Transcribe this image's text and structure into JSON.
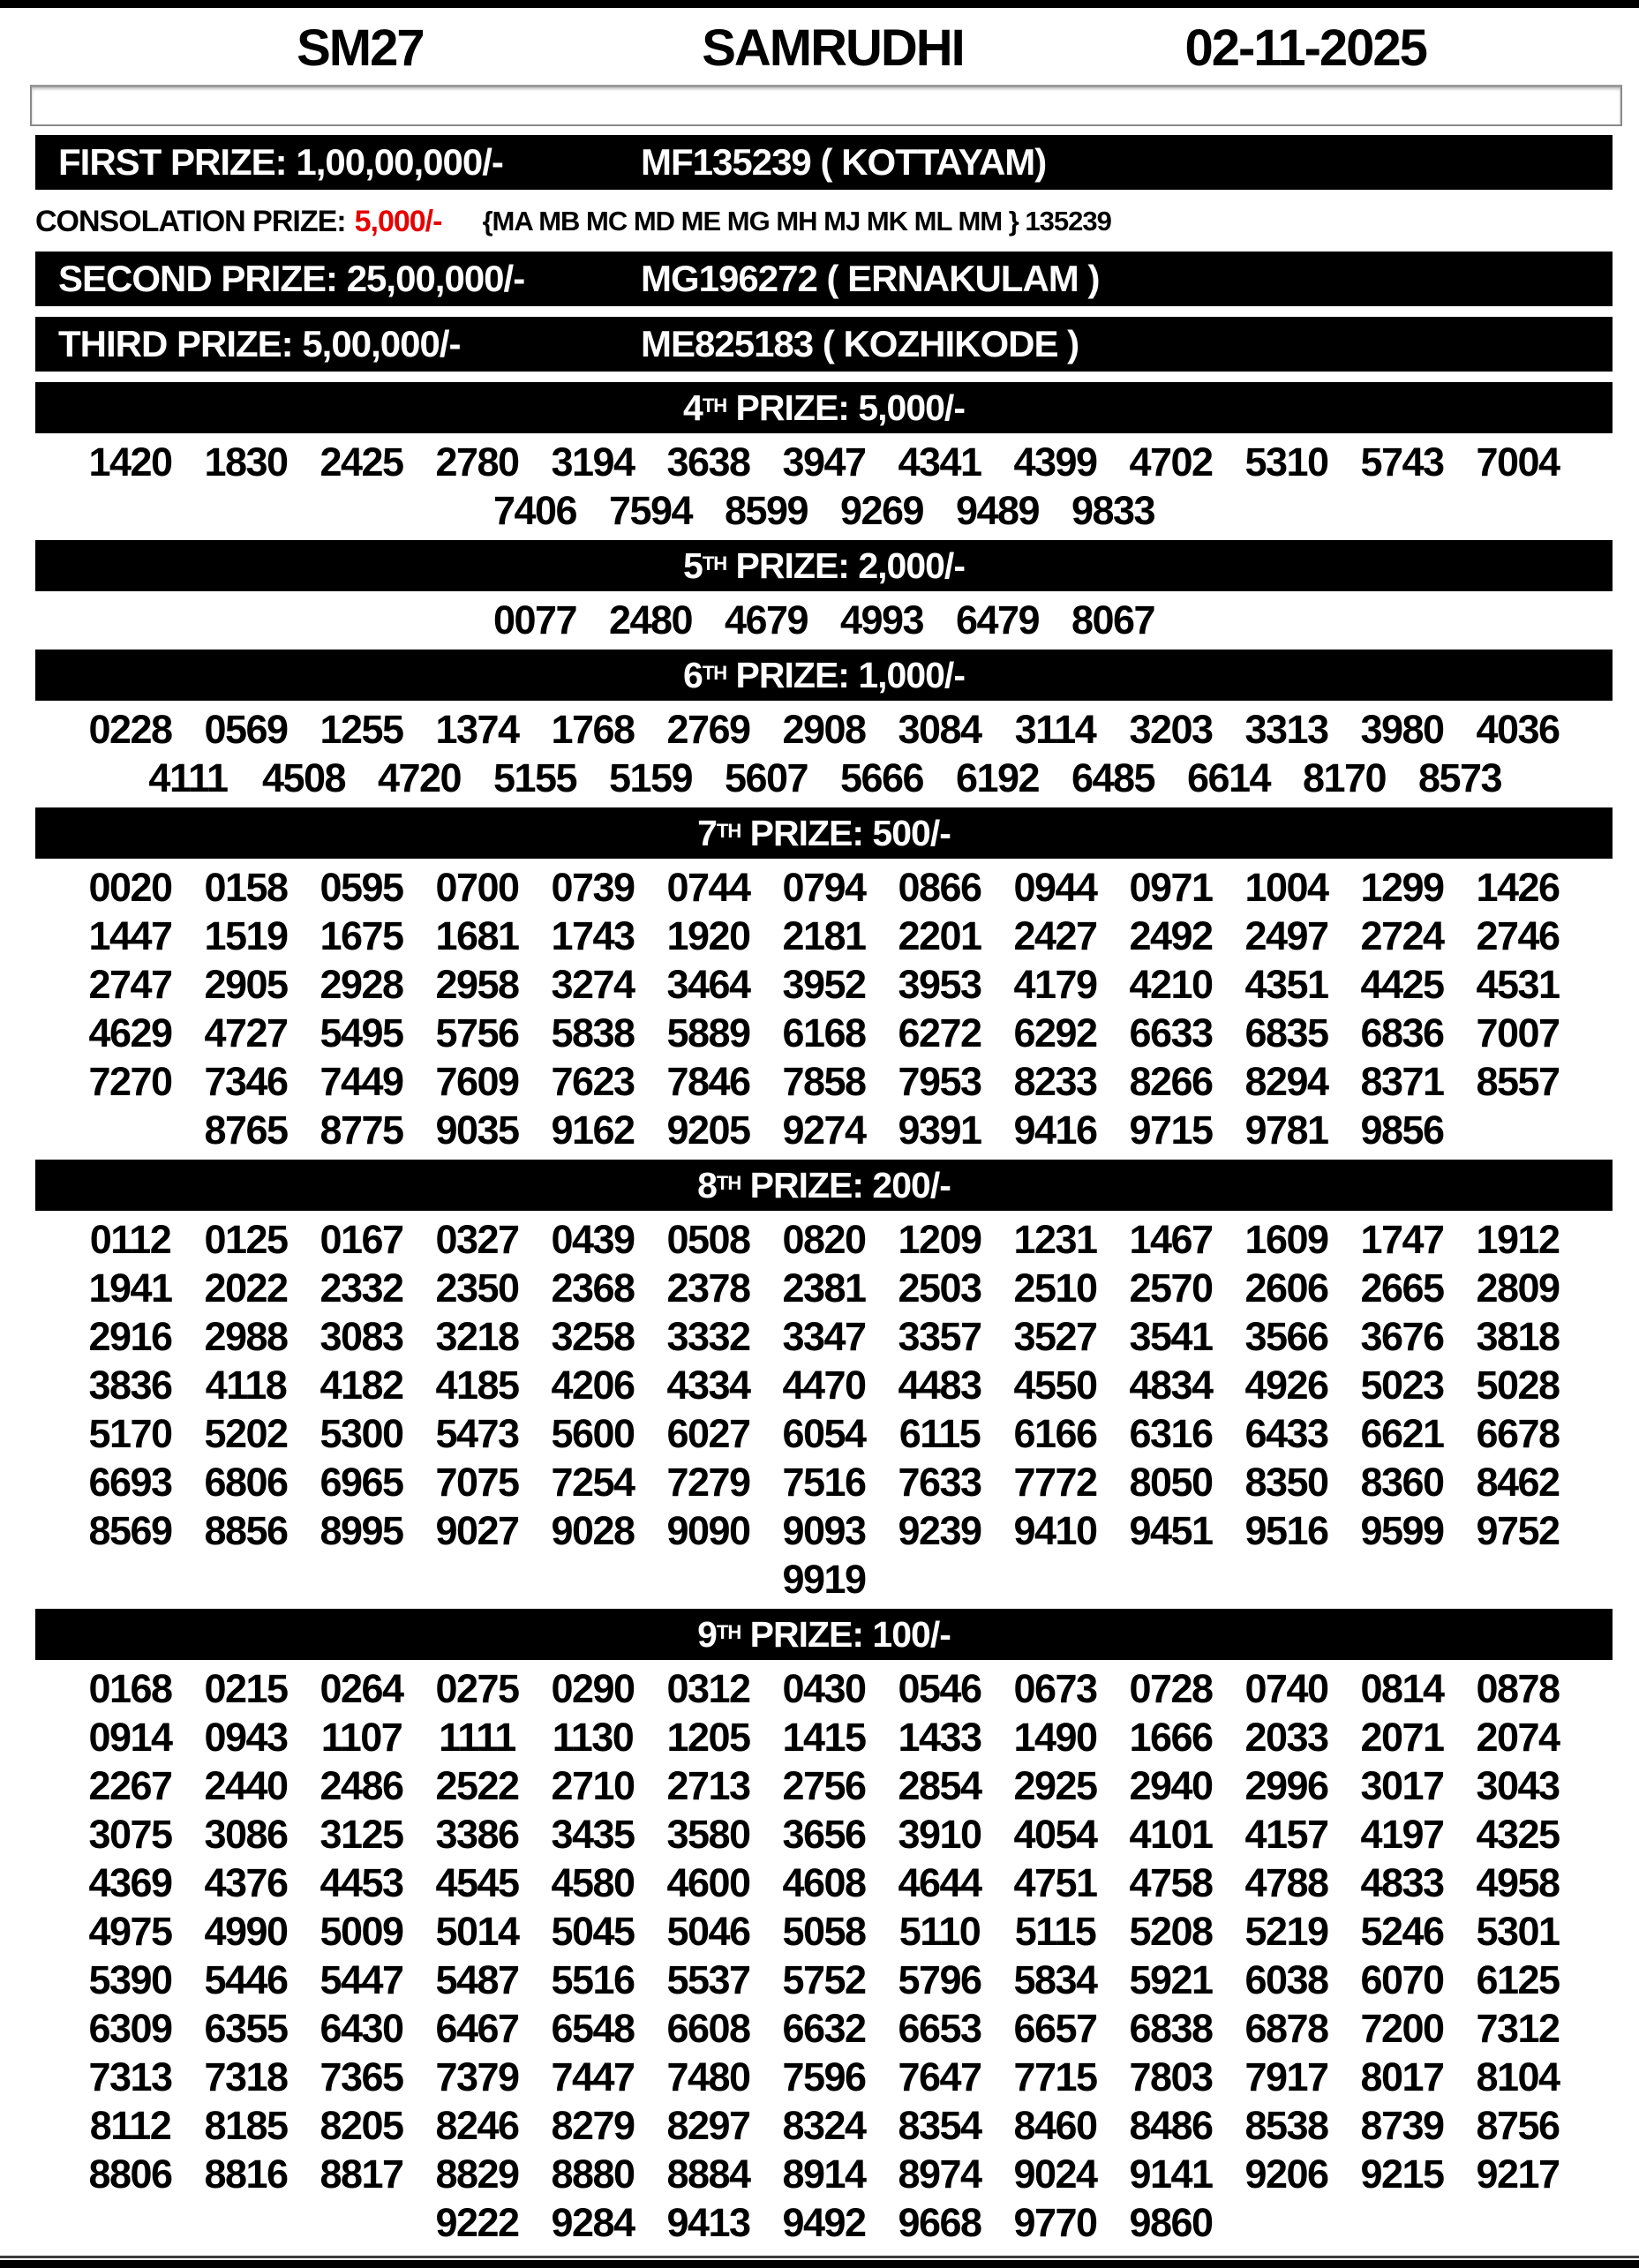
{
  "header": {
    "draw_code": "SM27",
    "lottery_name": "SAMRUDHI",
    "draw_date": "02-11-2025"
  },
  "colors": {
    "bar_background": "#000000",
    "bar_text": "#ffffff",
    "consolation_amount": "#e60000",
    "body_text": "#000000"
  },
  "top_prizes": [
    {
      "label": "FIRST PRIZE: 1,00,00,000/-",
      "winner": "MF135239 ( KOTTAYAM)"
    },
    {
      "label": "SECOND PRIZE: 25,00,000/-",
      "winner": "MG196272 ( ERNAKULAM )"
    },
    {
      "label": "THIRD PRIZE: 5,00,000/-",
      "winner": "ME825183 ( KOZHIKODE )"
    }
  ],
  "consolation": {
    "label": "CONSOLATION PRIZE:",
    "amount": "5,000/-",
    "series": "{MA MB MC MD ME MG MH MJ MK ML MM } 135239"
  },
  "tiers": [
    {
      "rank": "4",
      "ord": "TH",
      "label": "PRIZE: 5,000/-",
      "per_row": 13,
      "numbers": [
        "1420",
        "1830",
        "2425",
        "2780",
        "3194",
        "3638",
        "3947",
        "4341",
        "4399",
        "4702",
        "5310",
        "5743",
        "7004",
        "7406",
        "7594",
        "8599",
        "9269",
        "9489",
        "9833"
      ]
    },
    {
      "rank": "5",
      "ord": "TH",
      "label": "PRIZE: 2,000/-",
      "per_row": 13,
      "numbers": [
        "0077",
        "2480",
        "4679",
        "4993",
        "6479",
        "8067"
      ]
    },
    {
      "rank": "6",
      "ord": "TH",
      "label": "PRIZE: 1,000/-",
      "per_row": 13,
      "numbers": [
        "0228",
        "0569",
        "1255",
        "1374",
        "1768",
        "2769",
        "2908",
        "3084",
        "3114",
        "3203",
        "3313",
        "3980",
        "4036",
        "4111",
        "4508",
        "4720",
        "5155",
        "5159",
        "5607",
        "5666",
        "6192",
        "6485",
        "6614",
        "8170",
        "8573"
      ]
    },
    {
      "rank": "7",
      "ord": "TH",
      "label": "PRIZE: 500/-",
      "per_row": 13,
      "numbers": [
        "0020",
        "0158",
        "0595",
        "0700",
        "0739",
        "0744",
        "0794",
        "0866",
        "0944",
        "0971",
        "1004",
        "1299",
        "1426",
        "1447",
        "1519",
        "1675",
        "1681",
        "1743",
        "1920",
        "2181",
        "2201",
        "2427",
        "2492",
        "2497",
        "2724",
        "2746",
        "2747",
        "2905",
        "2928",
        "2958",
        "3274",
        "3464",
        "3952",
        "3953",
        "4179",
        "4210",
        "4351",
        "4425",
        "4531",
        "4629",
        "4727",
        "5495",
        "5756",
        "5838",
        "5889",
        "6168",
        "6272",
        "6292",
        "6633",
        "6835",
        "6836",
        "7007",
        "7270",
        "7346",
        "7449",
        "7609",
        "7623",
        "7846",
        "7858",
        "7953",
        "8233",
        "8266",
        "8294",
        "8371",
        "8557",
        "8765",
        "8775",
        "9035",
        "9162",
        "9205",
        "9274",
        "9391",
        "9416",
        "9715",
        "9781",
        "9856"
      ]
    },
    {
      "rank": "8",
      "ord": "TH",
      "label": "PRIZE: 200/-",
      "per_row": 13,
      "numbers": [
        "0112",
        "0125",
        "0167",
        "0327",
        "0439",
        "0508",
        "0820",
        "1209",
        "1231",
        "1467",
        "1609",
        "1747",
        "1912",
        "1941",
        "2022",
        "2332",
        "2350",
        "2368",
        "2378",
        "2381",
        "2503",
        "2510",
        "2570",
        "2606",
        "2665",
        "2809",
        "2916",
        "2988",
        "3083",
        "3218",
        "3258",
        "3332",
        "3347",
        "3357",
        "3527",
        "3541",
        "3566",
        "3676",
        "3818",
        "3836",
        "4118",
        "4182",
        "4185",
        "4206",
        "4334",
        "4470",
        "4483",
        "4550",
        "4834",
        "4926",
        "5023",
        "5028",
        "5170",
        "5202",
        "5300",
        "5473",
        "5600",
        "6027",
        "6054",
        "6115",
        "6166",
        "6316",
        "6433",
        "6621",
        "6678",
        "6693",
        "6806",
        "6965",
        "7075",
        "7254",
        "7279",
        "7516",
        "7633",
        "7772",
        "8050",
        "8350",
        "8360",
        "8462",
        "8569",
        "8856",
        "8995",
        "9027",
        "9028",
        "9090",
        "9093",
        "9239",
        "9410",
        "9451",
        "9516",
        "9599",
        "9752",
        "9919"
      ]
    },
    {
      "rank": "9",
      "ord": "TH",
      "label": "PRIZE: 100/-",
      "per_row": 13,
      "numbers": [
        "0168",
        "0215",
        "0264",
        "0275",
        "0290",
        "0312",
        "0430",
        "0546",
        "0673",
        "0728",
        "0740",
        "0814",
        "0878",
        "0914",
        "0943",
        "1107",
        "1111",
        "1130",
        "1205",
        "1415",
        "1433",
        "1490",
        "1666",
        "2033",
        "2071",
        "2074",
        "2267",
        "2440",
        "2486",
        "2522",
        "2710",
        "2713",
        "2756",
        "2854",
        "2925",
        "2940",
        "2996",
        "3017",
        "3043",
        "3075",
        "3086",
        "3125",
        "3386",
        "3435",
        "3580",
        "3656",
        "3910",
        "4054",
        "4101",
        "4157",
        "4197",
        "4325",
        "4369",
        "4376",
        "4453",
        "4545",
        "4580",
        "4600",
        "4608",
        "4644",
        "4751",
        "4758",
        "4788",
        "4833",
        "4958",
        "4975",
        "4990",
        "5009",
        "5014",
        "5045",
        "5046",
        "5058",
        "5110",
        "5115",
        "5208",
        "5219",
        "5246",
        "5301",
        "5390",
        "5446",
        "5447",
        "5487",
        "5516",
        "5537",
        "5752",
        "5796",
        "5834",
        "5921",
        "6038",
        "6070",
        "6125",
        "6309",
        "6355",
        "6430",
        "6467",
        "6548",
        "6608",
        "6632",
        "6653",
        "6657",
        "6838",
        "6878",
        "7200",
        "7312",
        "7313",
        "7318",
        "7365",
        "7379",
        "7447",
        "7480",
        "7596",
        "7647",
        "7715",
        "7803",
        "7917",
        "8017",
        "8104",
        "8112",
        "8185",
        "8205",
        "8246",
        "8279",
        "8297",
        "8324",
        "8354",
        "8460",
        "8486",
        "8538",
        "8739",
        "8756",
        "8806",
        "8816",
        "8817",
        "8829",
        "8880",
        "8884",
        "8914",
        "8974",
        "9024",
        "9141",
        "9206",
        "9215",
        "9217",
        "9222",
        "9284",
        "9413",
        "9492",
        "9668",
        "9770",
        "9860"
      ]
    }
  ]
}
